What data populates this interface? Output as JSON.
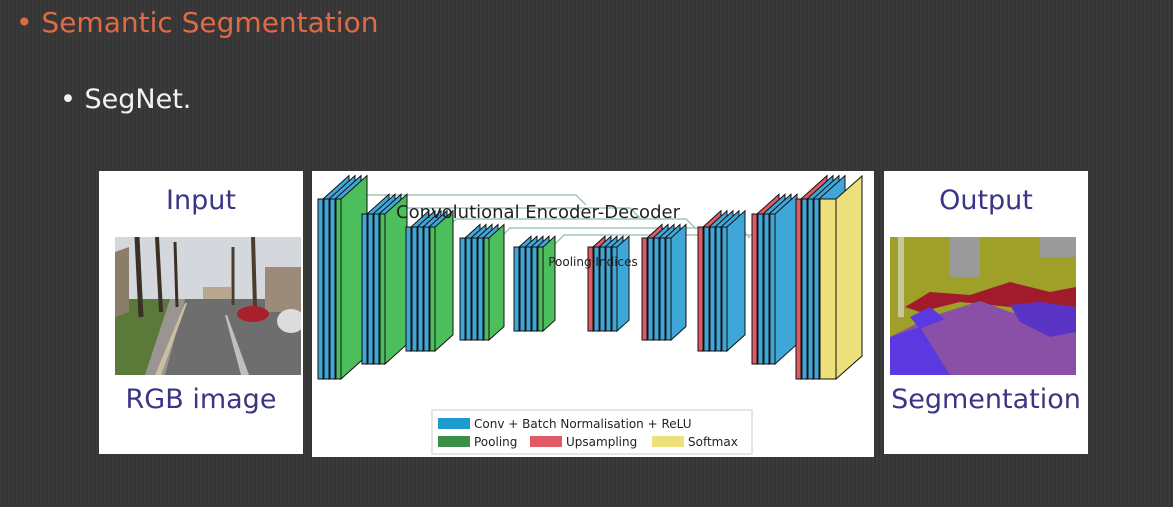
{
  "slide": {
    "heading": "• Semantic Segmentation",
    "subpoint": "• SegNet."
  },
  "input_panel": {
    "title": "Input",
    "caption": "RGB image"
  },
  "diagram": {
    "title": "Convolutional Encoder-Decoder",
    "arrow_label": "Pooling Indices",
    "legend": [
      {
        "label": "Conv + Batch Normalisation + ReLU",
        "color": "#1f9bd0"
      },
      {
        "label": "Pooling",
        "color": "#3c8f4a"
      },
      {
        "label": "Upsampling",
        "color": "#e05a66"
      },
      {
        "label": "Softmax",
        "color": "#ece07a"
      }
    ]
  },
  "output_panel": {
    "title": "Output",
    "caption": "Segmentation"
  },
  "colors": {
    "heading": "#e06a48",
    "panel_text": "#3b3585",
    "conv": "#3fa6d8",
    "pool": "#4cbf5c",
    "upsample": "#e05a66",
    "softmax": "#ece07a"
  }
}
